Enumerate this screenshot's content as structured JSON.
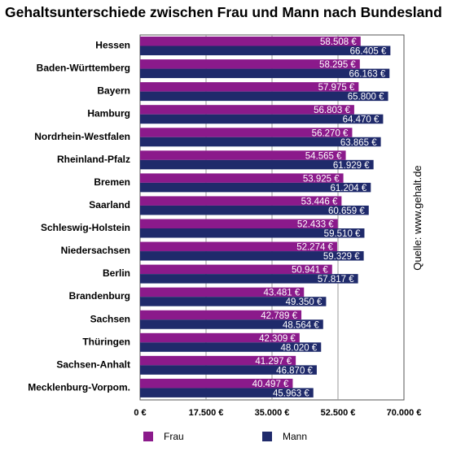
{
  "chart_data": {
    "type": "bar",
    "orientation": "horizontal",
    "title": "Gehaltsunterschiede zwischen Frau und Mann nach Bundesland",
    "source": "Quelle: www.gehalt.de",
    "categories": [
      "Hessen",
      "Baden-Württemberg",
      "Bayern",
      "Hamburg",
      "Nordrhein-Westfalen",
      "Rheinland-Pfalz",
      "Bremen",
      "Saarland",
      "Schleswig-Holstein",
      "Niedersachsen",
      "Berlin",
      "Brandenburg",
      "Sachsen",
      "Thüringen",
      "Sachsen-Anhalt",
      "Mecklenburg-Vorpom."
    ],
    "series": [
      {
        "name": "Frau",
        "color": "#8b1a8b",
        "values": [
          58508,
          58295,
          57975,
          56803,
          56270,
          54565,
          53925,
          53446,
          52433,
          52274,
          50941,
          43481,
          42789,
          42309,
          41297,
          40497
        ],
        "labels": [
          "58.508 €",
          "58.295 €",
          "57.975 €",
          "56.803 €",
          "56.270 €",
          "54.565 €",
          "53.925 €",
          "53.446 €",
          "52.433 €",
          "52.274 €",
          "50.941 €",
          "43.481 €",
          "42.789 €",
          "42.309 €",
          "41.297 €",
          "40.497 €"
        ]
      },
      {
        "name": "Mann",
        "color": "#1f2a6b",
        "values": [
          66405,
          66163,
          65800,
          64470,
          63865,
          61929,
          61204,
          60659,
          59510,
          59329,
          57817,
          49350,
          48564,
          48020,
          46870,
          45963
        ],
        "labels": [
          "66.405 €",
          "66.163 €",
          "65.800 €",
          "64.470 €",
          "63.865 €",
          "61.929 €",
          "61.204 €",
          "60.659 €",
          "59.510 €",
          "59.329 €",
          "57.817 €",
          "49.350 €",
          "48.564 €",
          "48.020 €",
          "46.870 €",
          "45.963 €"
        ]
      }
    ],
    "xlim": [
      0,
      70000
    ],
    "xticks": [
      0,
      17500,
      35000,
      52500,
      70000
    ],
    "xtick_labels": [
      "0 €",
      "17.500 €",
      "35.000 €",
      "52.500 €",
      "70.000 €"
    ],
    "grid": true,
    "legend_position": "bottom"
  }
}
